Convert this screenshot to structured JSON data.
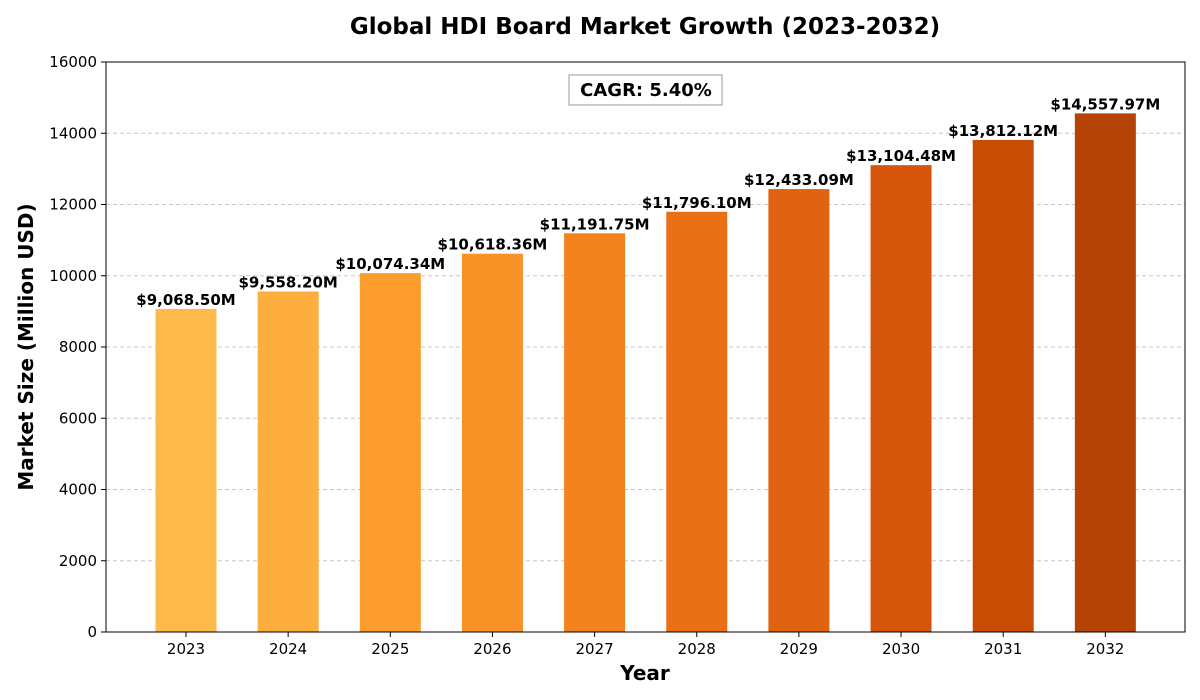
{
  "chart_data": {
    "type": "bar",
    "title": "Global HDI Board Market Growth (2023-2032)",
    "xlabel": "Year",
    "ylabel": "Market Size (Million USD)",
    "ylim": [
      0,
      16000
    ],
    "yticks": [
      0,
      2000,
      4000,
      6000,
      8000,
      10000,
      12000,
      14000,
      16000
    ],
    "grid": "y, dashed",
    "categories": [
      "2023",
      "2024",
      "2025",
      "2026",
      "2027",
      "2028",
      "2029",
      "2030",
      "2031",
      "2032"
    ],
    "values": [
      9068.5,
      9558.2,
      10074.34,
      10618.36,
      11191.75,
      11796.1,
      12433.09,
      13104.48,
      13812.12,
      14557.97
    ],
    "data_labels": [
      "$9,068.50M",
      "$9,558.20M",
      "$10,074.34M",
      "$10,618.36M",
      "$11,191.75M",
      "$11,796.10M",
      "$12,433.09M",
      "$13,104.48M",
      "$13,812.12M",
      "$14,557.97M"
    ],
    "colors": [
      "#fdb94a",
      "#fdae3e",
      "#fd9d2e",
      "#f89227",
      "#f3831f",
      "#ea7016",
      "#e06311",
      "#d5560a",
      "#c94c05",
      "#b64306"
    ],
    "annotation": "CAGR: 5.40%"
  }
}
